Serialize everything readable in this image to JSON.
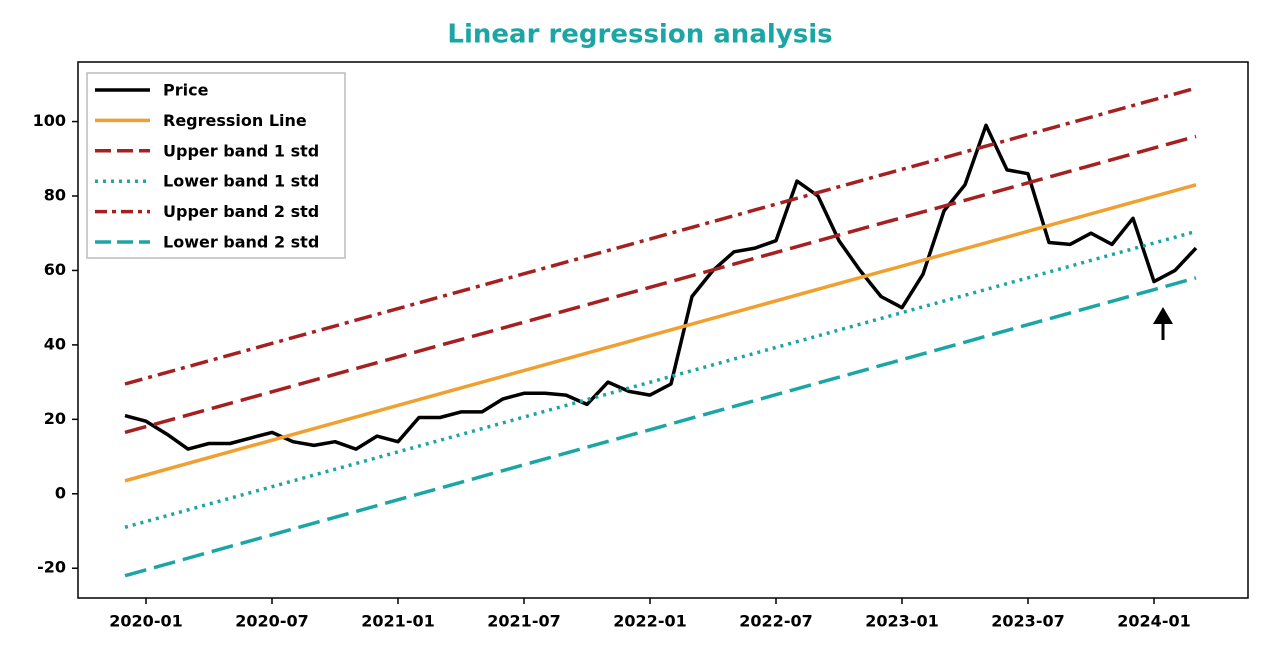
{
  "chart_data": {
    "type": "line",
    "title": "Linear regression analysis",
    "title_color": "#1ca5a5",
    "xlim": [
      "2019-10",
      "2024-05"
    ],
    "xticks": [
      "2020-01",
      "2020-07",
      "2021-01",
      "2021-07",
      "2022-01",
      "2022-07",
      "2023-01",
      "2023-07",
      "2024-01"
    ],
    "ylim": [
      -28,
      116
    ],
    "yticks": [
      -20,
      0,
      20,
      40,
      60,
      80,
      100
    ],
    "grid": false,
    "legend": "upper left",
    "series": [
      {
        "name": "Price",
        "color": "#000000",
        "linestyle": "solid",
        "x": [
          "2019-12",
          "2020-01",
          "2020-02",
          "2020-03",
          "2020-04",
          "2020-05",
          "2020-06",
          "2020-07",
          "2020-08",
          "2020-09",
          "2020-10",
          "2020-11",
          "2020-12",
          "2021-01",
          "2021-02",
          "2021-03",
          "2021-04",
          "2021-05",
          "2021-06",
          "2021-07",
          "2021-08",
          "2021-09",
          "2021-10",
          "2021-11",
          "2021-12",
          "2022-01",
          "2022-02",
          "2022-03",
          "2022-04",
          "2022-05",
          "2022-06",
          "2022-07",
          "2022-08",
          "2022-09",
          "2022-10",
          "2022-11",
          "2022-12",
          "2023-01",
          "2023-02",
          "2023-03",
          "2023-04",
          "2023-05",
          "2023-06",
          "2023-07",
          "2023-08",
          "2023-09",
          "2023-10",
          "2023-11",
          "2023-12",
          "2024-01",
          "2024-02",
          "2024-03"
        ],
        "values": [
          21,
          19.5,
          16,
          12,
          13.5,
          13.5,
          15,
          16.5,
          14,
          13,
          14,
          12,
          15.5,
          14,
          20.5,
          20.5,
          22,
          22,
          25.5,
          27,
          27,
          26.5,
          24,
          30,
          27.5,
          26.5,
          29.5,
          53,
          60,
          65,
          66,
          68,
          84,
          80,
          68,
          60,
          53,
          50,
          59,
          76,
          83,
          99,
          87,
          86,
          67.5,
          67,
          70,
          67,
          74,
          57,
          60,
          66
        ]
      },
      {
        "name": "Regression Line",
        "color": "#f0a030",
        "linestyle": "solid",
        "x": [
          "2019-12",
          "2024-03"
        ],
        "values": [
          3.5,
          83
        ]
      },
      {
        "name": "Upper band 1 std",
        "color": "#a52020",
        "linestyle": "dashed",
        "x": [
          "2019-12",
          "2024-03"
        ],
        "values": [
          16.5,
          96
        ]
      },
      {
        "name": "Lower band 1 std",
        "color": "#1ca5a5",
        "linestyle": "dotted",
        "x": [
          "2019-12",
          "2024-03"
        ],
        "values": [
          -9,
          70.5
        ]
      },
      {
        "name": "Upper band 2 std",
        "color": "#a52020",
        "linestyle": "dashdot",
        "x": [
          "2019-12",
          "2024-03"
        ],
        "values": [
          29.5,
          109
        ]
      },
      {
        "name": "Lower band 2 std",
        "color": "#1ca5a5",
        "linestyle": "dashed",
        "x": [
          "2019-12",
          "2024-03"
        ],
        "values": [
          -22,
          58
        ]
      }
    ]
  }
}
